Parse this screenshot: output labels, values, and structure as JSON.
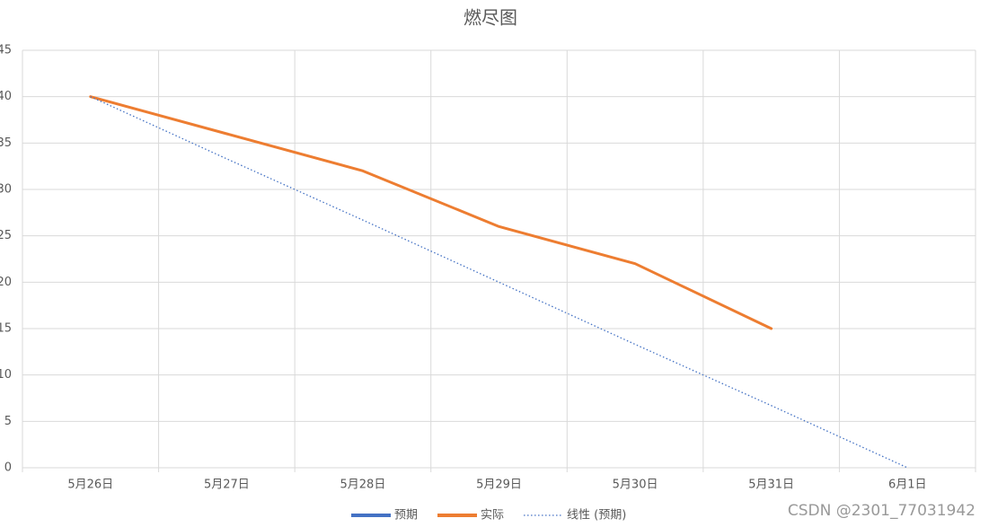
{
  "chart_data": {
    "type": "line",
    "title": "燃尽图",
    "categories": [
      "5月26日",
      "5月27日",
      "5月28日",
      "5月29日",
      "5月30日",
      "5月31日",
      "6月1日"
    ],
    "series": [
      {
        "name": "预期",
        "color": "#4472c4",
        "values": [
          40,
          null,
          null,
          null,
          null,
          null,
          0
        ],
        "width": 3
      },
      {
        "name": "实际",
        "color": "#ed7d31",
        "values": [
          40,
          36,
          32,
          26,
          22,
          15,
          null
        ],
        "width": 3
      },
      {
        "name": "线性 (预期)",
        "color": "#4472c4",
        "values": [
          40,
          33.3,
          26.7,
          20,
          13.3,
          6.7,
          0
        ],
        "width": 1.3,
        "dash": "dotted"
      }
    ],
    "ylim": [
      0,
      45
    ],
    "yticks": [
      0,
      5,
      10,
      15,
      20,
      25,
      30,
      35,
      40,
      45
    ],
    "grid": true,
    "legend": "bottom",
    "watermark": "CSDN @2301_77031942"
  }
}
